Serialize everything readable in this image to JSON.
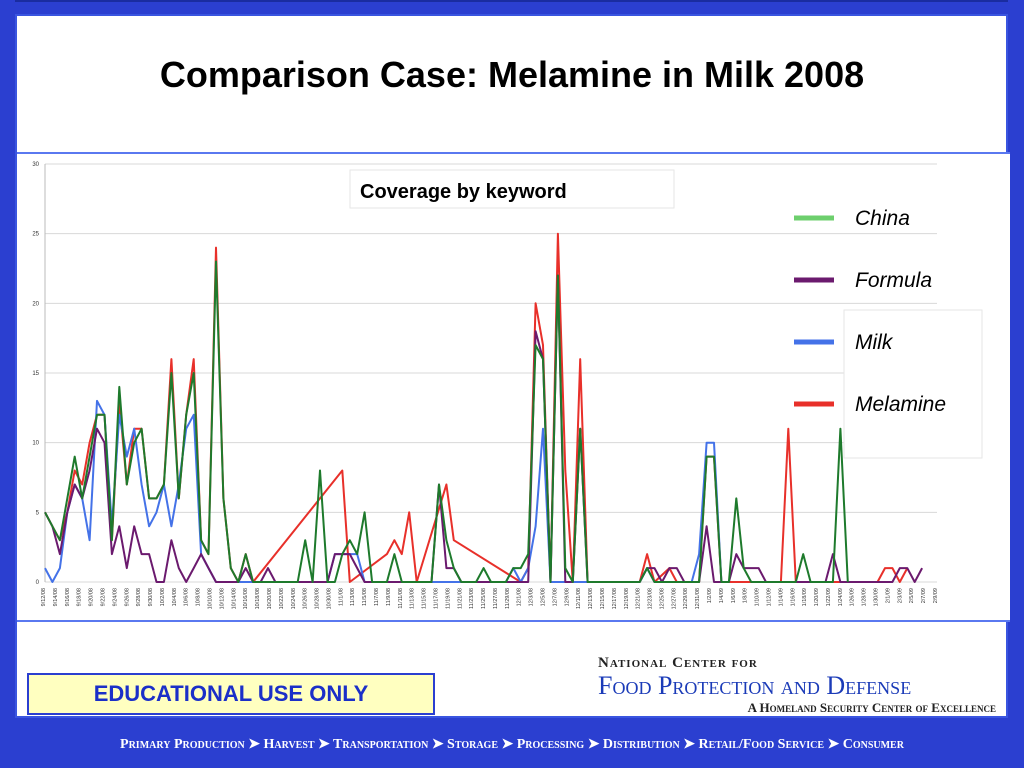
{
  "title": "Comparison Case: Melamine in Milk 2008",
  "educational_label": "EDUCATIONAL USE ONLY",
  "logo": {
    "line1": "National Center for",
    "line2": "Food Protection and Defense",
    "line3": "A Homeland Security Center of Excellence"
  },
  "footer_flow": "Primary Production ➤ Harvest ➤ Transportation ➤ Storage ➤ Processing ➤ Distribution ➤ Retail/Food Service ➤ Consumer",
  "chart_data": {
    "type": "line",
    "title": "Coverage by keyword",
    "ylim": [
      0,
      30
    ],
    "yticks": [
      0,
      5,
      10,
      15,
      20,
      25,
      30
    ],
    "legend_position": "right",
    "x_tick_labels": [
      "9/12/08",
      "9/14/08",
      "9/16/08",
      "9/18/08",
      "9/20/08",
      "9/22/08",
      "9/24/08",
      "9/26/08",
      "9/28/08",
      "9/30/08",
      "10/2/08",
      "10/4/08",
      "10/6/08",
      "10/8/08",
      "10/10/08",
      "10/12/08",
      "10/14/08",
      "10/16/08",
      "10/18/08",
      "10/20/08",
      "10/22/08",
      "10/24/08",
      "10/26/08",
      "10/28/08",
      "10/30/08",
      "11/1/08",
      "11/3/08",
      "11/5/08",
      "11/7/08",
      "11/9/08",
      "11/11/08",
      "11/13/08",
      "11/15/08",
      "11/17/08",
      "11/19/08",
      "11/21/08",
      "11/23/08",
      "11/25/08",
      "11/27/08",
      "11/29/08",
      "12/1/08",
      "12/3/08",
      "12/5/08",
      "12/7/08",
      "12/9/08",
      "12/11/08",
      "12/13/08",
      "12/15/08",
      "12/17/08",
      "12/19/08",
      "12/21/08",
      "12/23/08",
      "12/25/08",
      "12/27/08",
      "12/29/08",
      "12/31/08",
      "1/2/09",
      "1/4/09",
      "1/6/09",
      "1/8/09",
      "1/10/09",
      "1/12/09",
      "1/14/09",
      "1/16/09",
      "1/18/09",
      "1/20/09",
      "1/22/09",
      "1/24/09",
      "1/26/09",
      "1/28/09",
      "1/30/09",
      "2/1/09",
      "2/3/09",
      "2/5/09",
      "2/7/09",
      "2/9/09"
    ],
    "series": [
      {
        "name": "Melamine",
        "color": "#e8302a",
        "points": [
          [
            0,
            5
          ],
          [
            1,
            4
          ],
          [
            2,
            3
          ],
          [
            3,
            5
          ],
          [
            4,
            8
          ],
          [
            5,
            7
          ],
          [
            6,
            10
          ],
          [
            7,
            12
          ],
          [
            8,
            12
          ],
          [
            9,
            3
          ],
          [
            10,
            13
          ],
          [
            11,
            7
          ],
          [
            12,
            11
          ],
          [
            13,
            11
          ],
          [
            14,
            6
          ],
          [
            15,
            6
          ],
          [
            16,
            7
          ],
          [
            17,
            16
          ],
          [
            18,
            6
          ],
          [
            19,
            12
          ],
          [
            20,
            16
          ],
          [
            21,
            3
          ],
          [
            22,
            2
          ],
          [
            23,
            24
          ],
          [
            24,
            6
          ],
          [
            25,
            1
          ],
          [
            26,
            0
          ],
          [
            27,
            2
          ],
          [
            28,
            0
          ],
          [
            40,
            8
          ],
          [
            41,
            0
          ],
          [
            46,
            2
          ],
          [
            47,
            3
          ],
          [
            48,
            2
          ],
          [
            49,
            5
          ],
          [
            50,
            0
          ],
          [
            54,
            7
          ],
          [
            55,
            3
          ],
          [
            64,
            0
          ],
          [
            65,
            1
          ],
          [
            66,
            20
          ],
          [
            67,
            17
          ],
          [
            68,
            0
          ],
          [
            69,
            25
          ],
          [
            70,
            8
          ],
          [
            71,
            0
          ],
          [
            72,
            16
          ],
          [
            73,
            0
          ],
          [
            80,
            0
          ],
          [
            81,
            2
          ],
          [
            82,
            0
          ],
          [
            84,
            1
          ],
          [
            85,
            0
          ],
          [
            88,
            0
          ],
          [
            89,
            9
          ],
          [
            90,
            9
          ],
          [
            91,
            0
          ],
          [
            99,
            0
          ],
          [
            100,
            11
          ],
          [
            101,
            0
          ],
          [
            112,
            0
          ],
          [
            113,
            1
          ],
          [
            114,
            1
          ],
          [
            115,
            0
          ],
          [
            116,
            1
          ]
        ]
      },
      {
        "name": "Milk",
        "color": "#4472e8",
        "points": [
          [
            0,
            1
          ],
          [
            1,
            0
          ],
          [
            2,
            1
          ],
          [
            3,
            5
          ],
          [
            4,
            7
          ],
          [
            5,
            6
          ],
          [
            6,
            3
          ],
          [
            7,
            13
          ],
          [
            8,
            12
          ],
          [
            9,
            4
          ],
          [
            10,
            12
          ],
          [
            11,
            9
          ],
          [
            12,
            11
          ],
          [
            13,
            7
          ],
          [
            14,
            4
          ],
          [
            15,
            5
          ],
          [
            16,
            7
          ],
          [
            17,
            4
          ],
          [
            18,
            7
          ],
          [
            19,
            11
          ],
          [
            20,
            12
          ],
          [
            21,
            2
          ],
          [
            22,
            1
          ],
          [
            23,
            0
          ],
          [
            38,
            0
          ],
          [
            39,
            2
          ],
          [
            40,
            2
          ],
          [
            41,
            2
          ],
          [
            42,
            2
          ],
          [
            43,
            0
          ],
          [
            62,
            0
          ],
          [
            63,
            1
          ],
          [
            64,
            0
          ],
          [
            65,
            1
          ],
          [
            66,
            4
          ],
          [
            67,
            11
          ],
          [
            68,
            0
          ],
          [
            80,
            0
          ],
          [
            81,
            1
          ],
          [
            82,
            0
          ],
          [
            87,
            0
          ],
          [
            88,
            2
          ],
          [
            89,
            10
          ],
          [
            90,
            10
          ],
          [
            91,
            0
          ]
        ]
      },
      {
        "name": "Formula",
        "color": "#6b1a6e",
        "points": [
          [
            0,
            5
          ],
          [
            1,
            4
          ],
          [
            2,
            2
          ],
          [
            3,
            5
          ],
          [
            4,
            7
          ],
          [
            5,
            6
          ],
          [
            6,
            8
          ],
          [
            7,
            11
          ],
          [
            8,
            10
          ],
          [
            9,
            2
          ],
          [
            10,
            4
          ],
          [
            11,
            1
          ],
          [
            12,
            4
          ],
          [
            13,
            2
          ],
          [
            14,
            2
          ],
          [
            15,
            0
          ],
          [
            16,
            0
          ],
          [
            17,
            3
          ],
          [
            18,
            1
          ],
          [
            19,
            0
          ],
          [
            20,
            1
          ],
          [
            21,
            2
          ],
          [
            22,
            1
          ],
          [
            23,
            0
          ],
          [
            25,
            0
          ],
          [
            26,
            0
          ],
          [
            27,
            1
          ],
          [
            28,
            0
          ],
          [
            29,
            0
          ],
          [
            30,
            1
          ],
          [
            31,
            0
          ],
          [
            38,
            0
          ],
          [
            39,
            2
          ],
          [
            40,
            2
          ],
          [
            41,
            2
          ],
          [
            42,
            1
          ],
          [
            43,
            0
          ],
          [
            52,
            0
          ],
          [
            53,
            7
          ],
          [
            54,
            1
          ],
          [
            55,
            1
          ],
          [
            56,
            0
          ],
          [
            65,
            0
          ],
          [
            66,
            18
          ],
          [
            67,
            16
          ],
          [
            68,
            0
          ],
          [
            69,
            22
          ],
          [
            70,
            0
          ],
          [
            71,
            0
          ],
          [
            72,
            11
          ],
          [
            73,
            0
          ],
          [
            80,
            0
          ],
          [
            81,
            1
          ],
          [
            82,
            1
          ],
          [
            83,
            0
          ],
          [
            84,
            1
          ],
          [
            85,
            1
          ],
          [
            86,
            0
          ],
          [
            88,
            0
          ],
          [
            89,
            4
          ],
          [
            90,
            0
          ],
          [
            92,
            0
          ],
          [
            93,
            2
          ],
          [
            94,
            1
          ],
          [
            95,
            1
          ],
          [
            96,
            1
          ],
          [
            97,
            0
          ],
          [
            105,
            0
          ],
          [
            106,
            2
          ],
          [
            107,
            0
          ],
          [
            114,
            0
          ],
          [
            115,
            1
          ],
          [
            116,
            1
          ],
          [
            117,
            0
          ],
          [
            118,
            1
          ]
        ]
      },
      {
        "name": "China",
        "color": "#1e7a2c",
        "points": [
          [
            0,
            5
          ],
          [
            1,
            4
          ],
          [
            2,
            3
          ],
          [
            3,
            6
          ],
          [
            4,
            9
          ],
          [
            5,
            6
          ],
          [
            6,
            9
          ],
          [
            7,
            12
          ],
          [
            8,
            12
          ],
          [
            9,
            3
          ],
          [
            10,
            14
          ],
          [
            11,
            7
          ],
          [
            12,
            10
          ],
          [
            13,
            11
          ],
          [
            14,
            6
          ],
          [
            15,
            6
          ],
          [
            16,
            7
          ],
          [
            17,
            15
          ],
          [
            18,
            6
          ],
          [
            19,
            12
          ],
          [
            20,
            15
          ],
          [
            21,
            3
          ],
          [
            22,
            2
          ],
          [
            23,
            23
          ],
          [
            24,
            6
          ],
          [
            25,
            1
          ],
          [
            26,
            0
          ],
          [
            27,
            2
          ],
          [
            28,
            0
          ],
          [
            34,
            0
          ],
          [
            35,
            3
          ],
          [
            36,
            0
          ],
          [
            37,
            8
          ],
          [
            38,
            0
          ],
          [
            39,
            0
          ],
          [
            40,
            2
          ],
          [
            41,
            3
          ],
          [
            42,
            2
          ],
          [
            43,
            5
          ],
          [
            44,
            0
          ],
          [
            46,
            0
          ],
          [
            47,
            2
          ],
          [
            48,
            0
          ],
          [
            52,
            0
          ],
          [
            53,
            7
          ],
          [
            54,
            3
          ],
          [
            55,
            1
          ],
          [
            56,
            0
          ],
          [
            58,
            0
          ],
          [
            59,
            1
          ],
          [
            60,
            0
          ],
          [
            62,
            0
          ],
          [
            63,
            1
          ],
          [
            64,
            1
          ],
          [
            65,
            2
          ],
          [
            66,
            17
          ],
          [
            67,
            16
          ],
          [
            68,
            0
          ],
          [
            69,
            22
          ],
          [
            70,
            1
          ],
          [
            71,
            0
          ],
          [
            72,
            11
          ],
          [
            73,
            0
          ],
          [
            80,
            0
          ],
          [
            81,
            1
          ],
          [
            82,
            0
          ],
          [
            88,
            0
          ],
          [
            89,
            9
          ],
          [
            90,
            9
          ],
          [
            91,
            0
          ],
          [
            92,
            0
          ],
          [
            93,
            6
          ],
          [
            94,
            1
          ],
          [
            95,
            0
          ],
          [
            101,
            0
          ],
          [
            102,
            2
          ],
          [
            103,
            0
          ],
          [
            106,
            0
          ],
          [
            107,
            11
          ],
          [
            108,
            0
          ]
        ]
      }
    ]
  }
}
